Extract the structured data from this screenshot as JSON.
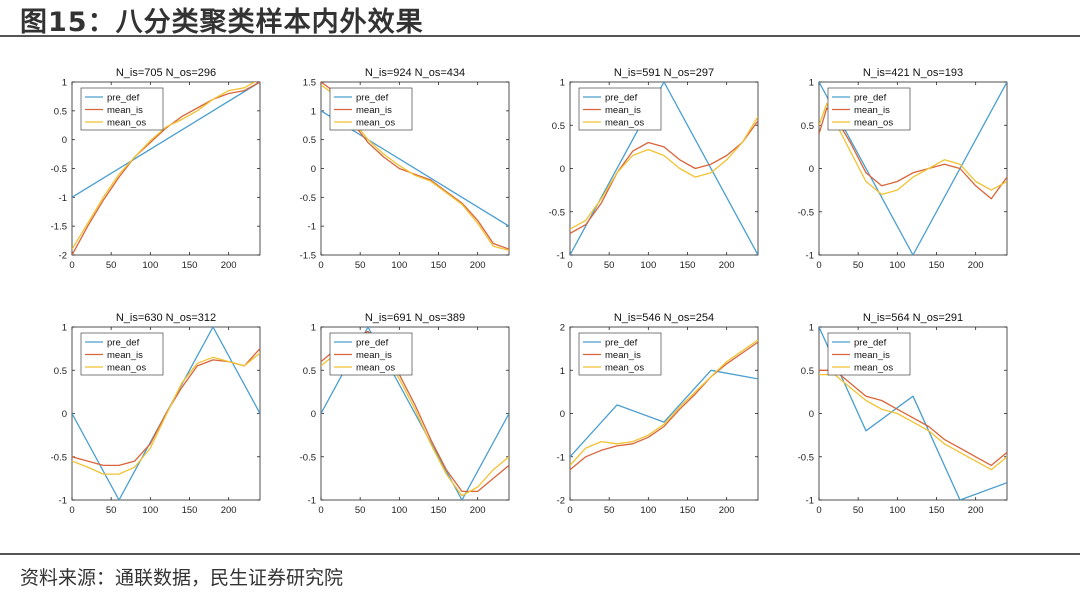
{
  "header": {
    "title": "图15：八分类聚类样本内外效果"
  },
  "footer": {
    "source": "资料来源：通联数据，民生证券研究院"
  },
  "colors": {
    "pre_def": "#4a9fd0",
    "mean_is": "#d9643a",
    "mean_os": "#f1c232"
  },
  "chart_data": [
    {
      "type": "line",
      "title": "N_is=705 N_os=296",
      "xlim": [
        0,
        240
      ],
      "ylim": [
        -2,
        1
      ],
      "xticks": [
        "0",
        "50",
        "100",
        "150",
        "200"
      ],
      "yticks": [
        "1",
        "0.5",
        "0",
        "-0.5",
        "-1",
        "-1.5",
        "-2"
      ],
      "legend": [
        "pre_def",
        "mean_is",
        "mean_os"
      ],
      "legend_loc": "top-left",
      "series": [
        {
          "name": "pre_def",
          "x": [
            0,
            240
          ],
          "y": [
            -1,
            1
          ]
        },
        {
          "name": "mean_is",
          "x": [
            0,
            20,
            40,
            60,
            80,
            100,
            120,
            140,
            160,
            180,
            200,
            220,
            240
          ],
          "y": [
            -2.0,
            -1.5,
            -1.05,
            -0.65,
            -0.3,
            -0.05,
            0.2,
            0.4,
            0.55,
            0.7,
            0.8,
            0.85,
            1.0
          ]
        },
        {
          "name": "mean_os",
          "x": [
            0,
            20,
            40,
            60,
            80,
            100,
            120,
            140,
            160,
            180,
            200,
            220,
            240
          ],
          "y": [
            -1.9,
            -1.45,
            -1.0,
            -0.6,
            -0.3,
            -0.02,
            0.22,
            0.35,
            0.5,
            0.7,
            0.85,
            0.9,
            1.05
          ]
        }
      ]
    },
    {
      "type": "line",
      "title": "N_is=924 N_os=434",
      "xlim": [
        0,
        240
      ],
      "ylim": [
        -1.5,
        1.5
      ],
      "xticks": [
        "0",
        "50",
        "100",
        "150",
        "200"
      ],
      "yticks": [
        "1.5",
        "1",
        "0.5",
        "0",
        "-0.5",
        "-1",
        "-1.5"
      ],
      "legend": [
        "pre_def",
        "mean_is",
        "mean_os"
      ],
      "legend_loc": "top-left",
      "series": [
        {
          "name": "pre_def",
          "x": [
            0,
            240
          ],
          "y": [
            1,
            -1
          ]
        },
        {
          "name": "mean_is",
          "x": [
            0,
            20,
            40,
            60,
            80,
            100,
            120,
            140,
            160,
            180,
            200,
            220,
            240
          ],
          "y": [
            1.5,
            1.3,
            0.8,
            0.45,
            0.2,
            0.0,
            -0.1,
            -0.2,
            -0.4,
            -0.6,
            -0.9,
            -1.3,
            -1.4
          ]
        },
        {
          "name": "mean_os",
          "x": [
            0,
            20,
            40,
            60,
            80,
            100,
            120,
            140,
            160,
            180,
            200,
            220,
            240
          ],
          "y": [
            1.45,
            1.25,
            0.85,
            0.5,
            0.25,
            0.05,
            -0.12,
            -0.22,
            -0.42,
            -0.62,
            -0.95,
            -1.35,
            -1.42
          ]
        }
      ]
    },
    {
      "type": "line",
      "title": "N_is=591 N_os=297",
      "xlim": [
        0,
        240
      ],
      "ylim": [
        -1,
        1
      ],
      "xticks": [
        "0",
        "50",
        "100",
        "150",
        "200"
      ],
      "yticks": [
        "1",
        "0.5",
        "0",
        "-0.5",
        "-1"
      ],
      "legend": [
        "pre_def",
        "mean_is",
        "mean_os"
      ],
      "legend_loc": "top-left",
      "series": [
        {
          "name": "pre_def",
          "x": [
            0,
            120,
            240
          ],
          "y": [
            -1,
            1,
            -1
          ]
        },
        {
          "name": "mean_is",
          "x": [
            0,
            20,
            40,
            60,
            80,
            100,
            120,
            140,
            160,
            180,
            200,
            220,
            240
          ],
          "y": [
            -0.75,
            -0.65,
            -0.4,
            -0.05,
            0.2,
            0.3,
            0.25,
            0.1,
            0.0,
            0.05,
            0.15,
            0.3,
            0.55
          ]
        },
        {
          "name": "mean_os",
          "x": [
            0,
            20,
            40,
            60,
            80,
            100,
            120,
            140,
            160,
            180,
            200,
            220,
            240
          ],
          "y": [
            -0.7,
            -0.6,
            -0.35,
            -0.05,
            0.15,
            0.22,
            0.15,
            0.0,
            -0.1,
            -0.05,
            0.1,
            0.3,
            0.6
          ]
        }
      ]
    },
    {
      "type": "line",
      "title": "N_is=421 N_os=193",
      "xlim": [
        0,
        240
      ],
      "ylim": [
        -1,
        1
      ],
      "xticks": [
        "0",
        "50",
        "100",
        "150",
        "200"
      ],
      "yticks": [
        "1",
        "0.5",
        "0",
        "-0.5",
        "-1"
      ],
      "legend": [
        "pre_def",
        "mean_is",
        "mean_os"
      ],
      "legend_loc": "top-left",
      "series": [
        {
          "name": "pre_def",
          "x": [
            0,
            120,
            240
          ],
          "y": [
            1,
            -1,
            1
          ]
        },
        {
          "name": "mean_is",
          "x": [
            0,
            10,
            20,
            40,
            60,
            80,
            100,
            120,
            140,
            160,
            180,
            200,
            220,
            240
          ],
          "y": [
            0.4,
            0.7,
            0.6,
            0.3,
            -0.05,
            -0.2,
            -0.15,
            -0.05,
            0.0,
            0.05,
            0.0,
            -0.2,
            -0.35,
            -0.1
          ]
        },
        {
          "name": "mean_os",
          "x": [
            0,
            10,
            20,
            40,
            60,
            80,
            100,
            120,
            140,
            160,
            180,
            200,
            220,
            240
          ],
          "y": [
            0.5,
            0.75,
            0.55,
            0.2,
            -0.15,
            -0.3,
            -0.25,
            -0.1,
            0.0,
            0.1,
            0.05,
            -0.15,
            -0.25,
            -0.15
          ]
        }
      ]
    },
    {
      "type": "line",
      "title": "N_is=630 N_os=312",
      "xlim": [
        0,
        240
      ],
      "ylim": [
        -1,
        1
      ],
      "xticks": [
        "0",
        "50",
        "100",
        "150",
        "200"
      ],
      "yticks": [
        "1",
        "0.5",
        "0",
        "-0.5",
        "-1"
      ],
      "legend": [
        "pre_def",
        "mean_is",
        "mean_os"
      ],
      "legend_loc": "top-left",
      "series": [
        {
          "name": "pre_def",
          "x": [
            0,
            60,
            180,
            240
          ],
          "y": [
            0,
            -1,
            1,
            0
          ]
        },
        {
          "name": "mean_is",
          "x": [
            0,
            20,
            40,
            60,
            80,
            100,
            120,
            140,
            160,
            180,
            200,
            220,
            240
          ],
          "y": [
            -0.5,
            -0.55,
            -0.6,
            -0.6,
            -0.55,
            -0.35,
            0.0,
            0.3,
            0.55,
            0.62,
            0.6,
            0.55,
            0.75
          ]
        },
        {
          "name": "mean_os",
          "x": [
            0,
            20,
            40,
            60,
            80,
            100,
            120,
            140,
            160,
            180,
            200,
            220,
            240
          ],
          "y": [
            -0.55,
            -0.62,
            -0.7,
            -0.7,
            -0.62,
            -0.4,
            -0.02,
            0.35,
            0.58,
            0.65,
            0.6,
            0.55,
            0.7
          ]
        }
      ]
    },
    {
      "type": "line",
      "title": "N_is=691 N_os=389",
      "xlim": [
        0,
        240
      ],
      "ylim": [
        -1,
        1
      ],
      "xticks": [
        "0",
        "50",
        "100",
        "150",
        "200"
      ],
      "yticks": [
        "1",
        "0.5",
        "0",
        "-0.5",
        "-1"
      ],
      "legend": [
        "pre_def",
        "mean_is",
        "mean_os"
      ],
      "legend_loc": "top-left",
      "series": [
        {
          "name": "pre_def",
          "x": [
            0,
            60,
            180,
            240
          ],
          "y": [
            0,
            1,
            -1,
            0
          ]
        },
        {
          "name": "mean_is",
          "x": [
            0,
            20,
            40,
            60,
            80,
            100,
            120,
            140,
            160,
            180,
            200,
            220,
            240
          ],
          "y": [
            0.6,
            0.75,
            0.85,
            0.95,
            0.75,
            0.45,
            0.1,
            -0.3,
            -0.65,
            -0.9,
            -0.9,
            -0.75,
            -0.6
          ]
        },
        {
          "name": "mean_os",
          "x": [
            0,
            20,
            40,
            60,
            80,
            100,
            120,
            140,
            160,
            180,
            200,
            220,
            240
          ],
          "y": [
            0.55,
            0.7,
            0.85,
            0.9,
            0.7,
            0.4,
            0.05,
            -0.35,
            -0.7,
            -0.95,
            -0.85,
            -0.65,
            -0.5
          ]
        }
      ]
    },
    {
      "type": "line",
      "title": "N_is=546 N_os=254",
      "xlim": [
        0,
        240
      ],
      "ylim": [
        -2,
        2
      ],
      "xticks": [
        "0",
        "50",
        "100",
        "150",
        "200"
      ],
      "yticks": [
        "2",
        "1",
        "0",
        "-1",
        "-2"
      ],
      "legend": [
        "pre_def",
        "mean_is",
        "mean_os"
      ],
      "legend_loc": "top-left",
      "series": [
        {
          "name": "pre_def",
          "x": [
            0,
            60,
            120,
            180,
            240
          ],
          "y": [
            -1,
            0.2,
            -0.2,
            1,
            0.8
          ]
        },
        {
          "name": "mean_is",
          "x": [
            0,
            20,
            40,
            60,
            80,
            100,
            120,
            140,
            160,
            180,
            200,
            220,
            240
          ],
          "y": [
            -1.3,
            -1.0,
            -0.85,
            -0.75,
            -0.7,
            -0.55,
            -0.3,
            0.1,
            0.45,
            0.85,
            1.15,
            1.4,
            1.65
          ]
        },
        {
          "name": "mean_os",
          "x": [
            0,
            20,
            40,
            60,
            80,
            100,
            120,
            140,
            160,
            180,
            200,
            220,
            240
          ],
          "y": [
            -1.2,
            -0.8,
            -0.65,
            -0.7,
            -0.65,
            -0.5,
            -0.25,
            0.15,
            0.5,
            0.85,
            1.2,
            1.45,
            1.7
          ]
        }
      ]
    },
    {
      "type": "line",
      "title": "N_is=564 N_os=291",
      "xlim": [
        0,
        240
      ],
      "ylim": [
        -1,
        1
      ],
      "xticks": [
        "0",
        "50",
        "100",
        "150",
        "200"
      ],
      "yticks": [
        "1",
        "0.5",
        "0",
        "-0.5",
        "-1"
      ],
      "legend": [
        "pre_def",
        "mean_is",
        "mean_os"
      ],
      "legend_loc": "top-left",
      "series": [
        {
          "name": "pre_def",
          "x": [
            0,
            60,
            120,
            180,
            240
          ],
          "y": [
            1,
            -0.2,
            0.2,
            -1,
            -0.8
          ]
        },
        {
          "name": "mean_is",
          "x": [
            0,
            20,
            40,
            60,
            80,
            100,
            120,
            140,
            160,
            180,
            200,
            220,
            240
          ],
          "y": [
            0.5,
            0.5,
            0.35,
            0.2,
            0.15,
            0.05,
            -0.05,
            -0.15,
            -0.3,
            -0.4,
            -0.5,
            -0.6,
            -0.45
          ]
        },
        {
          "name": "mean_os",
          "x": [
            0,
            20,
            40,
            60,
            80,
            100,
            120,
            140,
            160,
            180,
            200,
            220,
            240
          ],
          "y": [
            0.45,
            0.45,
            0.3,
            0.15,
            0.05,
            0.0,
            -0.1,
            -0.2,
            -0.35,
            -0.45,
            -0.55,
            -0.65,
            -0.5
          ]
        }
      ]
    }
  ]
}
